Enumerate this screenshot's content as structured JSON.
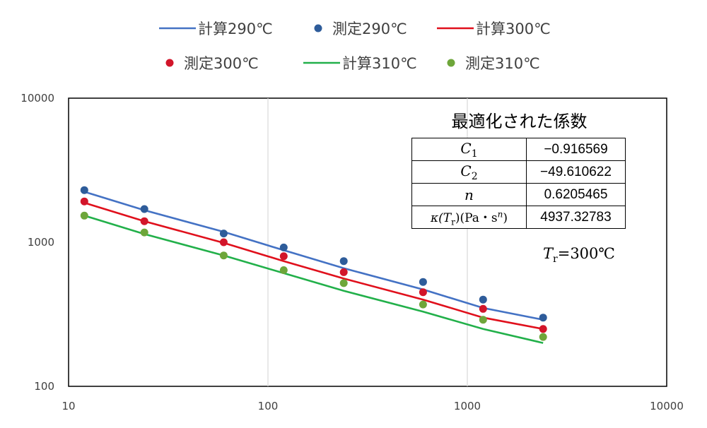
{
  "chart_data": {
    "type": "line",
    "x_scale": "log",
    "y_scale": "log",
    "xlim": [
      10,
      10000
    ],
    "ylim": [
      100,
      10000
    ],
    "x_ticks": [
      "10",
      "100",
      "1000",
      "10000"
    ],
    "y_ticks": [
      "100",
      "1000",
      "10000"
    ],
    "grid": "vertical-only",
    "legend_position": "top",
    "x": [
      12,
      24,
      60,
      120,
      240,
      600,
      1200,
      2400
    ],
    "series": [
      {
        "name": "計算290℃",
        "kind": "line",
        "color": "#4472C4",
        "values": [
          2240,
          1670,
          1180,
          880,
          660,
          470,
          350,
          290
        ]
      },
      {
        "name": "測定290℃",
        "kind": "marker",
        "color": "#2E5C9A",
        "values": [
          2300,
          1700,
          1150,
          920,
          740,
          530,
          400,
          300
        ]
      },
      {
        "name": "計算300℃",
        "kind": "line",
        "color": "#E0101C",
        "values": [
          1880,
          1400,
          990,
          740,
          560,
          400,
          300,
          250
        ]
      },
      {
        "name": "測定300℃",
        "kind": "marker",
        "color": "#D2152A",
        "values": [
          1920,
          1400,
          1000,
          800,
          620,
          450,
          345,
          250
        ]
      },
      {
        "name": "計算310℃",
        "kind": "line",
        "color": "#22B04A",
        "values": [
          1530,
          1140,
          810,
          610,
          460,
          330,
          250,
          200
        ]
      },
      {
        "name": "測定310℃",
        "kind": "marker",
        "color": "#6EA63A",
        "values": [
          1530,
          1170,
          810,
          640,
          520,
          370,
          290,
          220
        ]
      }
    ]
  },
  "legend": {
    "items": [
      "計算290℃",
      "測定290℃",
      "計算300℃",
      "測定300℃",
      "計算310℃",
      "測定310℃"
    ]
  },
  "coefficients": {
    "title": "最適化された係数",
    "rows": [
      {
        "symbol": "C",
        "subscript": "1",
        "value": "−0.916569"
      },
      {
        "symbol": "C",
        "subscript": "2",
        "value": "−49.610622"
      },
      {
        "symbol": "n",
        "subscript": "",
        "value": "0.6205465"
      },
      {
        "symbol": "κ(T",
        "subscript": "r",
        "suffix": ")(Pa・s",
        "superscript": "n",
        "close": ")",
        "value": "4937.32783"
      }
    ]
  },
  "reference": {
    "symbol": "T",
    "subscript": "r",
    "text": "=300℃"
  }
}
